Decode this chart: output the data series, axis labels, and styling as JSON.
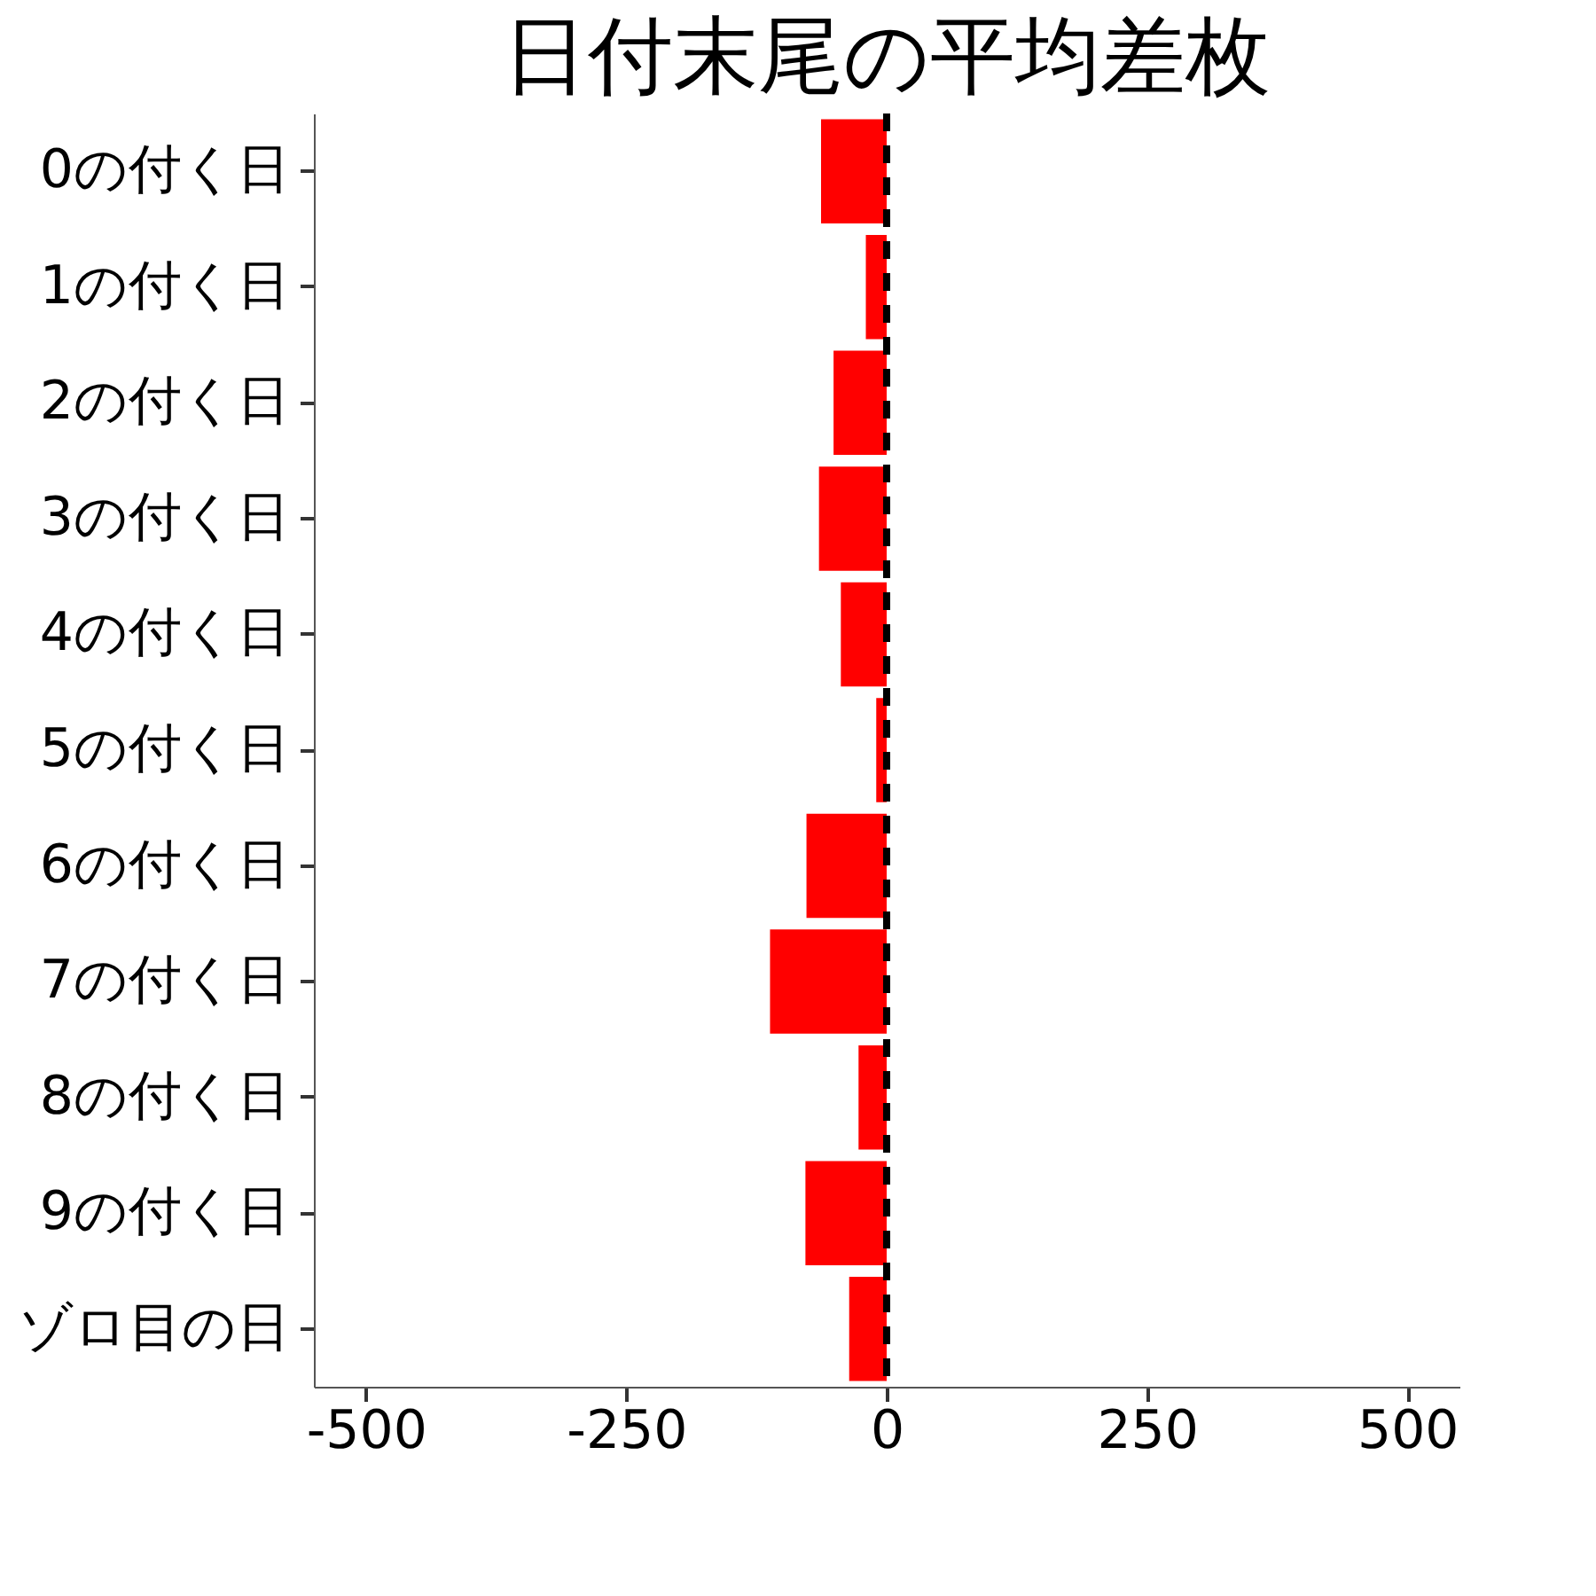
{
  "chart_data": {
    "type": "bar",
    "orientation": "horizontal",
    "title": "日付末尾の平均差枚",
    "categories": [
      "0の付く日",
      "1の付く日",
      "2の付く日",
      "3の付く日",
      "4の付く日",
      "5の付く日",
      "6の付く日",
      "7の付く日",
      "8の付く日",
      "9の付く日",
      "ゾロ目の日"
    ],
    "values": [
      -63,
      -20,
      -51,
      -65,
      -44,
      -10,
      -77,
      -112,
      -27,
      -78,
      -36
    ],
    "color": "#ff0000",
    "xlim": [
      -550,
      550
    ],
    "xticks": [
      -500,
      -250,
      0,
      250,
      500
    ],
    "grid": false,
    "ref_lines": [
      {
        "axis": "x",
        "value": 0,
        "color": "#000000",
        "line_style": "dashed"
      }
    ]
  }
}
